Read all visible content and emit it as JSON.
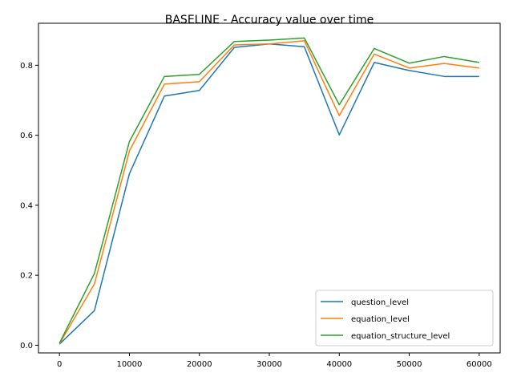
{
  "chart_data": {
    "type": "line",
    "title": "BASELINE - Accuracy value over time",
    "xlabel": "",
    "ylabel": "",
    "xlim": [
      -3000,
      63000
    ],
    "ylim": [
      -0.022,
      0.92
    ],
    "xticks": [
      0,
      10000,
      20000,
      30000,
      40000,
      50000,
      60000
    ],
    "xtick_labels": [
      "0",
      "10000",
      "20000",
      "30000",
      "40000",
      "50000",
      "60000"
    ],
    "yticks": [
      0.0,
      0.2,
      0.4,
      0.6,
      0.8
    ],
    "ytick_labels": [
      "0.0",
      "0.2",
      "0.4",
      "0.6",
      "0.8"
    ],
    "grid": false,
    "legend_position": "lower-right",
    "x": [
      0,
      5000,
      10000,
      15000,
      20000,
      25000,
      30000,
      35000,
      40000,
      45000,
      50000,
      55000,
      60000
    ],
    "series": [
      {
        "name": "question_level",
        "color": "#1f77b4",
        "values": [
          0.003,
          0.099,
          0.49,
          0.712,
          0.728,
          0.851,
          0.861,
          0.853,
          0.601,
          0.808,
          0.785,
          0.768,
          0.768
        ]
      },
      {
        "name": "equation_level",
        "color": "#ff7f0e",
        "values": [
          0.004,
          0.175,
          0.555,
          0.746,
          0.753,
          0.858,
          0.861,
          0.87,
          0.656,
          0.832,
          0.792,
          0.805,
          0.792
        ]
      },
      {
        "name": "equation_structure_level",
        "color": "#2ca02c",
        "values": [
          0.006,
          0.205,
          0.582,
          0.768,
          0.774,
          0.868,
          0.872,
          0.878,
          0.687,
          0.848,
          0.806,
          0.825,
          0.808
        ]
      }
    ]
  }
}
